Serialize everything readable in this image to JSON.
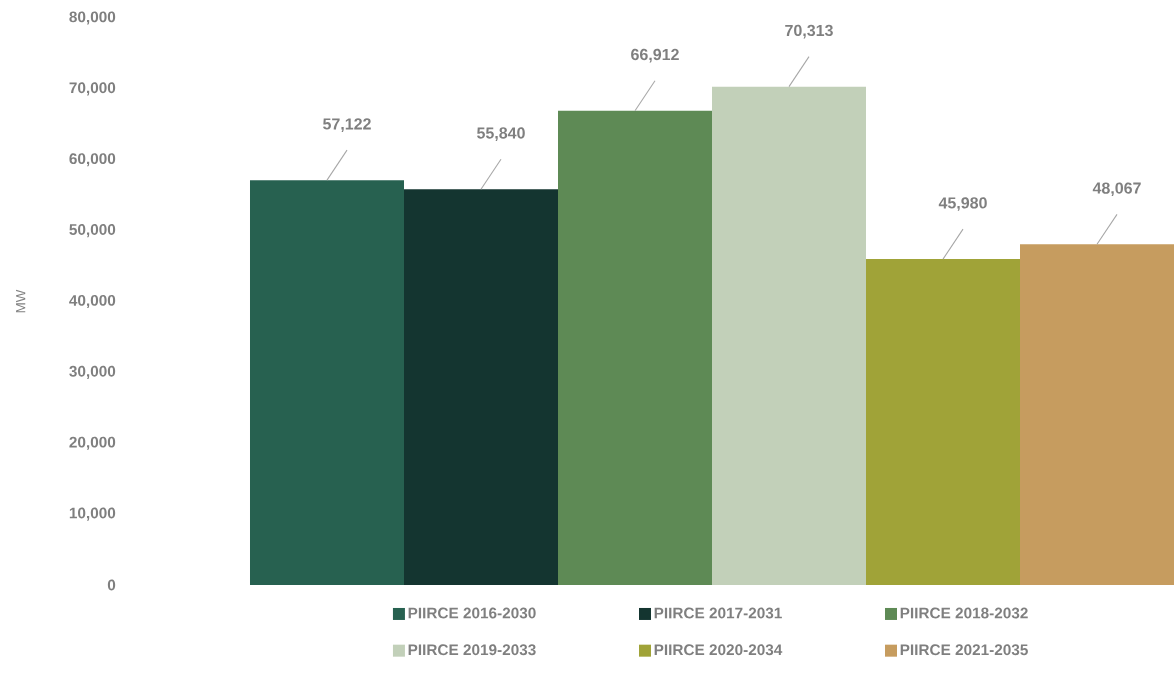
{
  "chart_data": {
    "type": "bar",
    "ylabel": "MW",
    "categories": [
      null
    ],
    "series": [
      {
        "name": "PIIRCE 2016-2030",
        "color": "#276150",
        "values": [
          57122
        ]
      },
      {
        "name": "PIIRCE 2017-2031",
        "color": "#143530",
        "values": [
          55840
        ]
      },
      {
        "name": "PIIRCE 2018-2032",
        "color": "#5e8a55",
        "values": [
          66912
        ]
      },
      {
        "name": "PIIRCE 2019-2033",
        "color": "#c2d0b9",
        "values": [
          70313
        ]
      },
      {
        "name": "PIIRCE 2020-2034",
        "color": "#a0a338",
        "values": [
          45980
        ]
      },
      {
        "name": "PIIRCE 2021-2035",
        "color": "#c69c5f",
        "values": [
          48067
        ]
      }
    ],
    "ylim": [
      0,
      80000
    ],
    "yticks": [
      {
        "value": 0,
        "label": "0"
      },
      {
        "value": 10000,
        "label": "10,000"
      },
      {
        "value": 20000,
        "label": "20,000"
      },
      {
        "value": 30000,
        "label": "30,000"
      },
      {
        "value": 40000,
        "label": "40,000"
      },
      {
        "value": 50000,
        "label": "50,000"
      },
      {
        "value": 60000,
        "label": "60,000"
      },
      {
        "value": 70000,
        "label": "70,000"
      },
      {
        "value": 80000,
        "label": "80,000"
      }
    ],
    "value_labels": [
      "57,122",
      "55,840",
      "66,912",
      "70,313",
      "45,980",
      "48,067"
    ],
    "legend": "bottom"
  }
}
